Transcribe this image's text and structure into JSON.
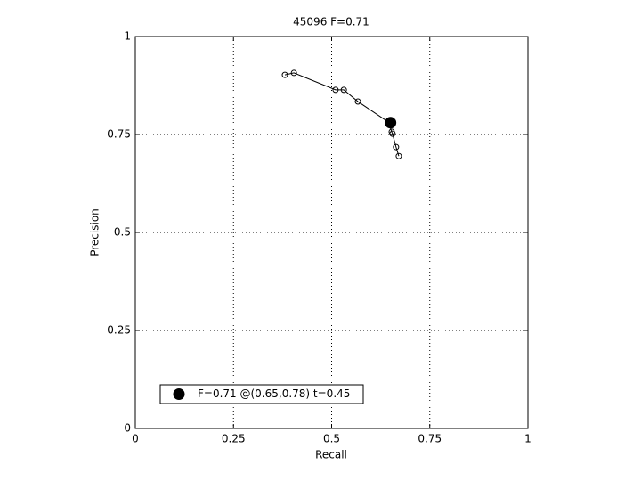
{
  "chart_data": {
    "type": "line",
    "title": "45096 F=0.71",
    "x_label": "Recall",
    "y_label": "Precision",
    "xlim": [
      0,
      1
    ],
    "ylim": [
      0,
      1
    ],
    "xticks": [
      0,
      0.25,
      0.5,
      0.75,
      1
    ],
    "yticks": [
      0,
      0.25,
      0.5,
      0.75,
      1
    ],
    "grid": true,
    "legend_position": "lower left",
    "series": [
      {
        "color": "#000000",
        "marker": "circle",
        "x": [
          0.381,
          0.404,
          0.51,
          0.531,
          0.567,
          0.644,
          0.653,
          0.655,
          0.664,
          0.671
        ],
        "values": [
          0.902,
          0.907,
          0.864,
          0.864,
          0.834,
          0.782,
          0.757,
          0.752,
          0.718,
          0.695
        ]
      },
      {
        "name": "F=0.71 @(0.65,0.78) t=0.45",
        "color": "#000000",
        "marker": "dot",
        "x": [
          0.65
        ],
        "values": [
          0.78
        ]
      }
    ]
  }
}
